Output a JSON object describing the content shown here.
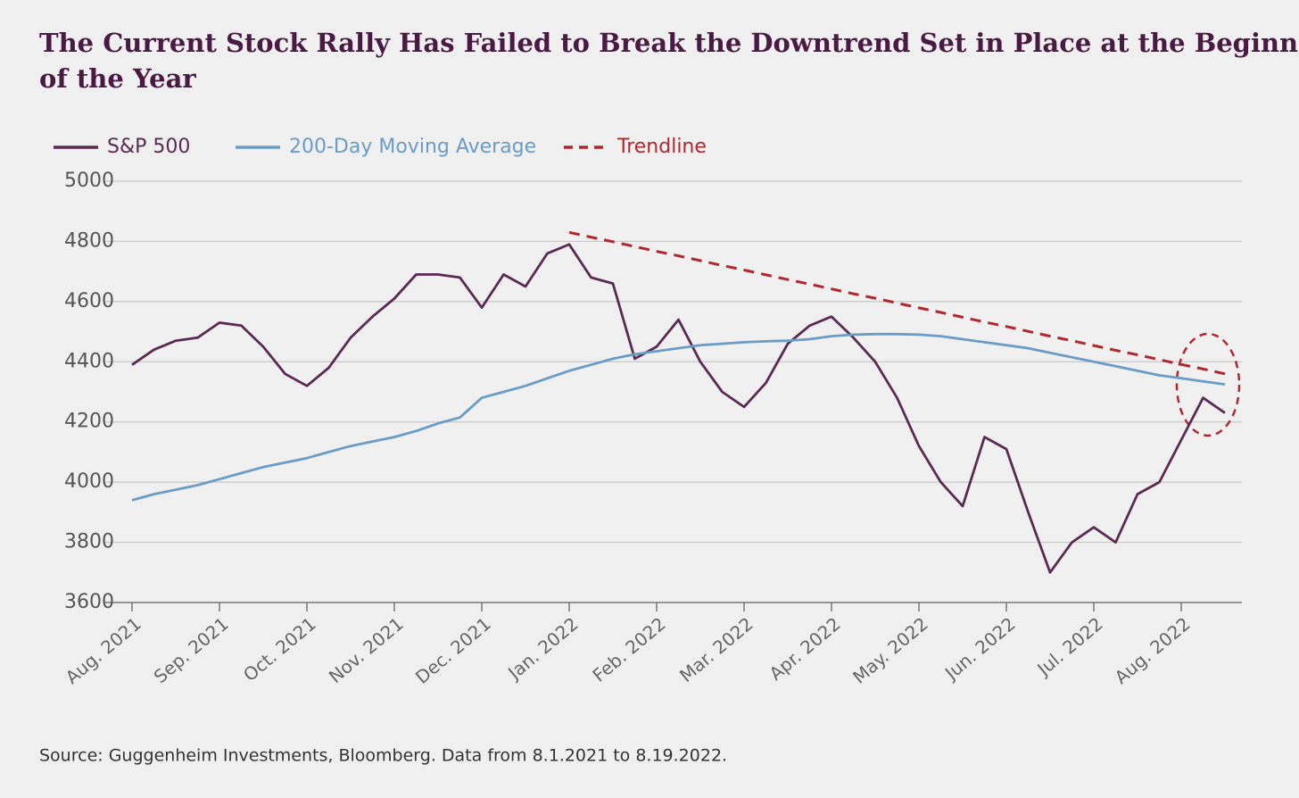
{
  "chart_data": {
    "type": "line",
    "title": "The Current Stock Rally Has Failed to Break the Downtrend Set in Place at the Beginning of the Year",
    "source": "Source: Guggenheim Investments, Bloomberg. Data from 8.1.2021 to 8.19.2022.",
    "categories": [
      "Aug. 2021",
      null,
      null,
      null,
      "Sep. 2021",
      null,
      null,
      null,
      "Oct. 2021",
      null,
      null,
      null,
      "Nov. 2021",
      null,
      null,
      null,
      "Dec. 2021",
      null,
      null,
      null,
      "Jan. 2022",
      null,
      null,
      null,
      "Feb. 2022",
      null,
      null,
      null,
      "Mar. 2022",
      null,
      null,
      null,
      "Apr. 2022",
      null,
      null,
      null,
      "May. 2022",
      null,
      null,
      null,
      "Jun. 2022",
      null,
      null,
      null,
      "Jul. 2022",
      null,
      null,
      null,
      "Aug. 2022",
      null,
      null
    ],
    "series": [
      {
        "name": "S&P 500",
        "color": "#5a2a52",
        "style": "solid",
        "values": [
          4390,
          4440,
          4470,
          4480,
          4530,
          4520,
          4450,
          4360,
          4320,
          4380,
          4480,
          4550,
          4610,
          4690,
          4690,
          4680,
          4580,
          4690,
          4650,
          4760,
          4790,
          4680,
          4660,
          4410,
          4450,
          4540,
          4400,
          4300,
          4250,
          4330,
          4460,
          4520,
          4550,
          4480,
          4400,
          4280,
          4120,
          4000,
          3920,
          4150,
          4110,
          3900,
          3700,
          3800,
          3850,
          3800,
          3960,
          4000,
          4140,
          4280,
          4230
        ]
      },
      {
        "name": "200-Day Moving Average",
        "color": "#6a9cc8",
        "style": "solid",
        "values": [
          3940,
          3960,
          3975,
          3990,
          4010,
          4030,
          4050,
          4065,
          4080,
          4100,
          4120,
          4135,
          4150,
          4170,
          4195,
          4215,
          4280,
          4300,
          4320,
          4345,
          4370,
          4390,
          4410,
          4425,
          4435,
          4445,
          4455,
          4460,
          4465,
          4468,
          4470,
          4475,
          4485,
          4490,
          4492,
          4492,
          4490,
          4485,
          4475,
          4465,
          4455,
          4445,
          4430,
          4415,
          4400,
          4385,
          4370,
          4355,
          4345,
          4335,
          4325
        ]
      },
      {
        "name": "Trendline",
        "color": "#b0272e",
        "style": "dashed",
        "values": [
          null,
          null,
          null,
          null,
          null,
          null,
          null,
          null,
          null,
          null,
          null,
          null,
          null,
          null,
          null,
          null,
          null,
          null,
          null,
          null,
          4830,
          4814,
          4799,
          4783,
          4767,
          4752,
          4736,
          4720,
          4705,
          4689,
          4673,
          4658,
          4642,
          4626,
          4611,
          4595,
          4579,
          4564,
          4548,
          4532,
          4517,
          4501,
          4485,
          4470,
          4454,
          4438,
          4423,
          4407,
          4391,
          4376,
          4360
        ]
      }
    ],
    "ylim": [
      3600,
      5000
    ],
    "yticks": [
      3600,
      3800,
      4000,
      4200,
      4400,
      4600,
      4800,
      5000
    ],
    "grid": true,
    "legend": "top-left"
  }
}
